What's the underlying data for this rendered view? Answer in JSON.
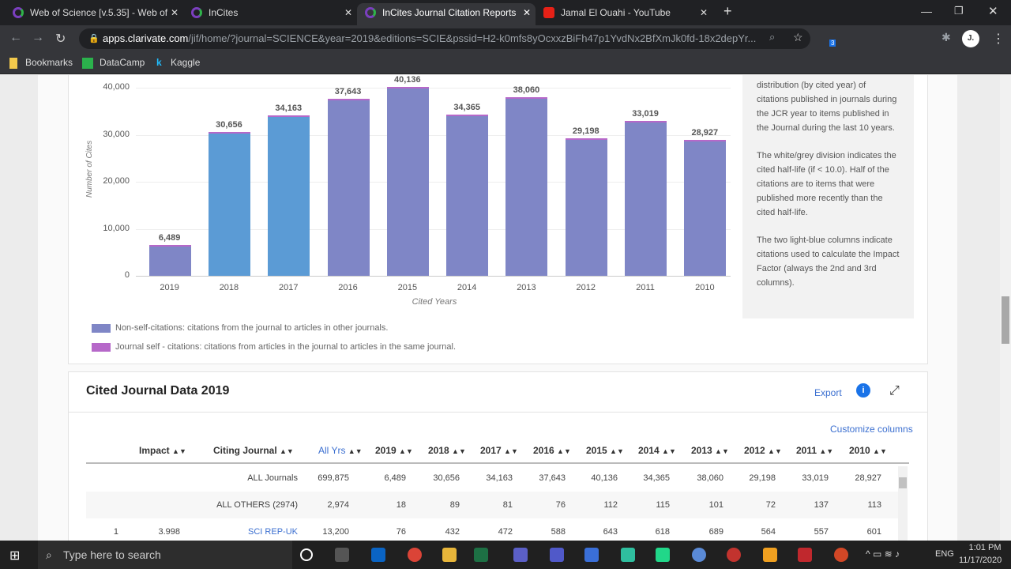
{
  "browser": {
    "tabs": [
      {
        "label": "Web of Science [v.5.35] - Web of",
        "active": false
      },
      {
        "label": "InCites",
        "active": false
      },
      {
        "label": "InCites Journal Citation Reports",
        "active": true
      },
      {
        "label": "Jamal El Ouahi - YouTube",
        "active": false
      }
    ],
    "url_host": "apps.clarivate.com",
    "url_path": "/jif/home/?journal=SCIENCE&year=2019&editions=SCIE&pssid=H2-k0mfs8yOcxxzBiFh47p1YvdNx2BfXmJk0fd-18x2depYr...",
    "extension_badge": "3",
    "profile_initial": "J.",
    "bookmarks": [
      "Bookmarks",
      "DataCamp",
      "Kaggle"
    ]
  },
  "chart_data": {
    "type": "bar",
    "categories": [
      "2019",
      "2018",
      "2017",
      "2016",
      "2015",
      "2014",
      "2013",
      "2012",
      "2011",
      "2010"
    ],
    "values": [
      6489,
      30656,
      34163,
      37643,
      40136,
      34365,
      38060,
      29198,
      33019,
      28927
    ],
    "value_labels": [
      "6,489",
      "30,656",
      "34,163",
      "37,643",
      "40,136",
      "34,365",
      "38,060",
      "29,198",
      "33,019",
      "28,927"
    ],
    "highlighted": [
      "2018",
      "2017"
    ],
    "xlabel": "Cited Years",
    "ylabel": "Number of Cites",
    "ylim": [
      0,
      40000
    ],
    "yticks": [
      "0",
      "10,000",
      "20,000",
      "30,000",
      "40,000"
    ],
    "grid": true,
    "colors": {
      "non_self": "#7f86c6",
      "self": "#b668c9",
      "impact_factor": "#5b9bd5"
    },
    "legend": [
      {
        "label": "Non-self-citations: citations from the journal to articles in other journals.",
        "color": "#7f86c6"
      },
      {
        "label": "Journal self - citations: citations from articles in the journal to articles in the same journal.",
        "color": "#b668c9"
      }
    ]
  },
  "info": [
    "distribution (by cited year) of citations published in journals during the JCR year to items published in the Journal during the last 10 years.",
    "The white/grey division indicates the cited half-life (if < 10.0). Half of the citations are to items that were published more recently than the cited half-life.",
    "The two light-blue columns indicate citations used to calculate the Impact Factor (always the 2nd and 3rd columns)."
  ],
  "table": {
    "title": "Cited Journal Data 2019",
    "export": "Export",
    "customize": "Customize columns",
    "headers": [
      "Impact",
      "Citing Journal",
      "All Yrs",
      "2019",
      "2018",
      "2017",
      "2016",
      "2015",
      "2014",
      "2013",
      "2012",
      "2011",
      "2010"
    ],
    "sorted_column": "All Yrs",
    "rows": [
      [
        "",
        "",
        "ALL Journals",
        "699,875",
        "6,489",
        "30,656",
        "34,163",
        "37,643",
        "40,136",
        "34,365",
        "38,060",
        "29,198",
        "33,019",
        "28,927"
      ],
      [
        "",
        "",
        "ALL OTHERS (2974)",
        "2,974",
        "18",
        "89",
        "81",
        "76",
        "112",
        "115",
        "101",
        "72",
        "137",
        "113"
      ],
      [
        "1",
        "3.998",
        "SCI REP-UK",
        "13,200",
        "76",
        "432",
        "472",
        "588",
        "643",
        "618",
        "689",
        "564",
        "557",
        "601"
      ]
    ]
  },
  "taskbar": {
    "search_placeholder": "Type here to search",
    "lang": "ENG",
    "time": "1:01 PM",
    "date": "11/17/2020"
  }
}
